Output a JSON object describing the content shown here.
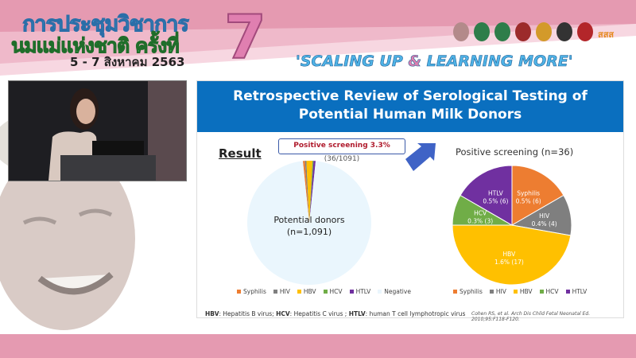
{
  "banner": {
    "title_line1": "การประชุมวิชาการ",
    "title_line2": "นมแม่แห่งชาติ ครั้งที่",
    "dates": "5 - 7 สิงหาคม 2563",
    "edition": "7",
    "slogan_part1": "'SCALING UP ",
    "slogan_amp": "&",
    "slogan_part2": " LEARNING MORE'",
    "logo_text": "สสส"
  },
  "slide": {
    "title_line1": "Retrospective Review of Serological Testing of",
    "title_line2": "Potential Human Milk Donors",
    "result_label": "Result",
    "callout_bold": "Positive screening 3.3%",
    "callout_rest": " (36/1091)",
    "footnote": {
      "hbv_abbr": "HBV",
      "hbv": ": Hepatitis B virus; ",
      "hcv_abbr": "HCV",
      "hcv": ": Hepatitis C virus ; ",
      "htlv_abbr": "HTLV",
      "htlv": ": human T cell lymphotropic virus"
    },
    "citation": "Cohen RS, et al. Arch Dis Child Fetal Neonatal Ed. 2010;95:F118-F120."
  },
  "colors": {
    "Syphilis": "#ed7d31",
    "HIV": "#7f7f7f",
    "HBV": "#ffc000",
    "HCV": "#70ad47",
    "HTLV": "#7030a0",
    "Negative": "#eaf6fd",
    "header": "#0a6fbf"
  },
  "chart_data": [
    {
      "type": "pie",
      "title": "",
      "center_label_line1": "Potential donors",
      "center_label_line2": "(n=1,091)",
      "categories": [
        "Syphilis",
        "HIV",
        "HBV",
        "HCV",
        "HTLV",
        "Negative"
      ],
      "values": [
        6,
        4,
        17,
        3,
        6,
        1055
      ],
      "legend": [
        "Syphilis",
        "HIV",
        "HBV",
        "HCV",
        "HTLV",
        "Negative"
      ],
      "legend_position": "bottom"
    },
    {
      "type": "pie",
      "title": "Positive screening (n=36)",
      "categories": [
        "Syphilis",
        "HIV",
        "HBV",
        "HCV",
        "HTLV"
      ],
      "values": [
        6,
        4,
        17,
        3,
        6
      ],
      "data_labels": [
        "0.5% (6)",
        "0.4% (4)",
        "1.6% (17)",
        "0.3% (3)",
        "0.5% (6)"
      ],
      "legend": [
        "Syphilis",
        "HIV",
        "HBV",
        "HCV",
        "HTLV"
      ],
      "legend_position": "bottom"
    }
  ]
}
